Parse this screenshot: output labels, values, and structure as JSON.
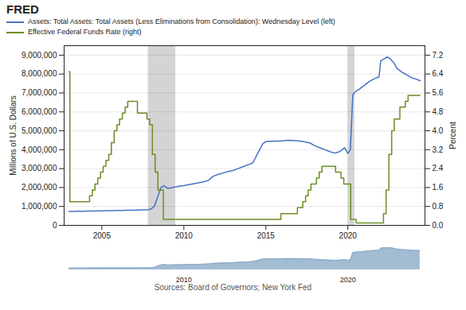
{
  "chart_data": [
    {
      "type": "line",
      "title": "FRED",
      "annotations": [
        "Sources: Board of Governors; New York Fed"
      ],
      "ylabel": "Millions of U.S. Dollars",
      "y2label": "Percent",
      "xlim": [
        2002.7,
        2024.7
      ],
      "xticks": [
        2005,
        2010,
        2015,
        2020
      ],
      "ylim": [
        0,
        9500000
      ],
      "yticks": [
        0,
        {
          "value": 1000000,
          "label": "1,000,000"
        },
        {
          "value": 2000000,
          "label": "2,000,000"
        },
        {
          "value": 3000000,
          "label": "3,000,000"
        },
        {
          "value": 4000000,
          "label": "4,000,000"
        },
        {
          "value": 5000000,
          "label": "5,000,000"
        },
        {
          "value": 6000000,
          "label": "6,000,000"
        },
        {
          "value": 7000000,
          "label": "7,000,000"
        },
        {
          "value": 8000000,
          "label": "8,000,000"
        },
        {
          "value": 9000000,
          "label": "9,000,000"
        }
      ],
      "y2lim": [
        0,
        7.6
      ],
      "y2ticks": [
        {
          "value": 0.0,
          "label": "0.0"
        },
        0.8,
        1.6,
        2.4,
        3.2,
        {
          "value": 4.0,
          "label": "4.0"
        },
        4.8,
        5.6,
        6.4,
        7.2
      ],
      "grid": true,
      "legend": "top left",
      "shades": [
        [
          2007.83,
          2009.5
        ],
        [
          2020.0,
          2020.42
        ]
      ],
      "series": [
        {
          "name": "Assets: Total Assets: Total Assets (Less Eliminations from Consolidation): Wednesday Level (left)",
          "color": "#4472c4",
          "x": [
            2003.0,
            2003.15,
            2003.3,
            2003.5,
            2003.7,
            2003.9,
            2004.1,
            2004.3,
            2004.5,
            2004.7,
            2004.9,
            2005.1,
            2005.3,
            2005.5,
            2005.7,
            2005.9,
            2006.1,
            2006.3,
            2006.5,
            2006.7,
            2006.9,
            2007.1,
            2007.3,
            2007.5,
            2007.7,
            2007.83,
            2008.0,
            2008.2,
            2008.4,
            2008.6,
            2008.8,
            2009.0,
            2009.2,
            2009.4,
            2009.6,
            2009.8,
            2010.0,
            2010.3,
            2010.6,
            2010.9,
            2011.2,
            2011.5,
            2011.8,
            2012.1,
            2012.4,
            2012.7,
            2013.0,
            2013.3,
            2013.6,
            2013.9,
            2014.2,
            2014.5,
            2014.8,
            2015.0,
            2015.3,
            2015.6,
            2015.9,
            2016.2,
            2016.5,
            2016.8,
            2017.1,
            2017.4,
            2017.7,
            2018.0,
            2018.3,
            2018.6,
            2018.9,
            2019.2,
            2019.5,
            2019.8,
            2020.0,
            2020.15,
            2020.3,
            2020.5,
            2020.7,
            2021.0,
            2021.3,
            2021.6,
            2021.9,
            2022.0,
            2022.2,
            2022.4,
            2022.6,
            2022.8,
            2023.0,
            2023.3,
            2023.6,
            2023.9,
            2024.1,
            2024.4
          ],
          "values": [
            735000,
            738000,
            740000,
            742000,
            745000,
            748000,
            752000,
            755000,
            758000,
            762000,
            765000,
            770000,
            774000,
            778000,
            782000,
            786000,
            790000,
            793000,
            796000,
            799000,
            802000,
            806000,
            810000,
            815000,
            822000,
            830000,
            870000,
            1000000,
            1500000,
            2000000,
            2100000,
            1950000,
            1980000,
            2020000,
            2050000,
            2080000,
            2100000,
            2150000,
            2200000,
            2250000,
            2300000,
            2380000,
            2600000,
            2700000,
            2770000,
            2850000,
            2900000,
            3000000,
            3100000,
            3200000,
            3300000,
            3800000,
            4300000,
            4430000,
            4450000,
            4460000,
            4460000,
            4490000,
            4500000,
            4480000,
            4460000,
            4410000,
            4350000,
            4200000,
            4100000,
            4000000,
            3900000,
            3820000,
            3900000,
            4100000,
            3800000,
            4000000,
            6900000,
            7100000,
            7200000,
            7400000,
            7600000,
            7750000,
            7850000,
            8700000,
            8800000,
            8900000,
            8800000,
            8600000,
            8300000,
            8100000,
            7950000,
            7800000,
            7750000,
            7650000
          ]
        },
        {
          "name": "Effective Federal Funds Rate (right)",
          "color": "#6b8e23",
          "axis": "y2",
          "line_style": "steps",
          "x": [
            2003.0,
            2003.05,
            2003.5,
            2003.58,
            2004.0,
            2004.25,
            2004.42,
            2004.58,
            2004.75,
            2004.92,
            2005.08,
            2005.25,
            2005.42,
            2005.58,
            2005.75,
            2005.92,
            2006.08,
            2006.25,
            2006.42,
            2006.58,
            2007.0,
            2007.17,
            2007.75,
            2007.92,
            2008.08,
            2008.25,
            2008.42,
            2008.75,
            2009.0,
            2015.0,
            2015.92,
            2016.92,
            2017.08,
            2017.25,
            2017.42,
            2017.58,
            2017.75,
            2018.0,
            2018.08,
            2018.25,
            2018.42,
            2018.75,
            2019.0,
            2019.25,
            2019.58,
            2019.75,
            2020.0,
            2020.17,
            2020.5,
            2022.0,
            2022.17,
            2022.33,
            2022.5,
            2022.67,
            2022.83,
            2023.0,
            2023.17,
            2023.5,
            2023.67,
            2024.0,
            2024.4
          ],
          "values": [
            6.5,
            1.0,
            1.0,
            1.0,
            1.0,
            1.25,
            1.5,
            1.75,
            2.0,
            2.25,
            2.5,
            2.75,
            3.0,
            3.5,
            4.0,
            4.25,
            4.5,
            4.75,
            5.0,
            5.25,
            5.25,
            4.75,
            4.5,
            4.25,
            3.0,
            2.25,
            1.5,
            0.25,
            0.25,
            0.25,
            0.5,
            0.75,
            0.75,
            1.0,
            1.25,
            1.5,
            1.75,
            1.75,
            2.0,
            2.25,
            2.5,
            2.5,
            2.5,
            2.25,
            2.0,
            1.75,
            1.75,
            0.25,
            0.1,
            0.1,
            0.5,
            1.5,
            3.0,
            4.0,
            4.5,
            4.5,
            5.0,
            5.25,
            5.5,
            5.5,
            5.5
          ]
        }
      ]
    },
    {
      "type": "area",
      "color": "#7a9fc0",
      "x": [
        2003.0,
        2003.15,
        2003.3,
        2003.5,
        2003.7,
        2003.9,
        2004.1,
        2004.3,
        2004.5,
        2004.7,
        2004.9,
        2005.1,
        2005.3,
        2005.5,
        2005.7,
        2005.9,
        2006.1,
        2006.3,
        2006.5,
        2006.7,
        2006.9,
        2007.1,
        2007.3,
        2007.5,
        2007.7,
        2007.83,
        2008.0,
        2008.2,
        2008.4,
        2008.6,
        2008.8,
        2009.0,
        2009.2,
        2009.4,
        2009.6,
        2009.8,
        2010.0,
        2010.3,
        2010.6,
        2010.9,
        2011.2,
        2011.5,
        2011.8,
        2012.1,
        2012.4,
        2012.7,
        2013.0,
        2013.3,
        2013.6,
        2013.9,
        2014.2,
        2014.5,
        2014.8,
        2015.0,
        2015.3,
        2015.6,
        2015.9,
        2016.2,
        2016.5,
        2016.8,
        2017.1,
        2017.4,
        2017.7,
        2018.0,
        2018.3,
        2018.6,
        2018.9,
        2019.2,
        2019.5,
        2019.8,
        2020.0,
        2020.15,
        2020.3,
        2020.5,
        2020.7,
        2021.0,
        2021.3,
        2021.6,
        2021.9,
        2022.0,
        2022.2,
        2022.4,
        2022.6,
        2022.8,
        2023.0,
        2023.3,
        2023.6,
        2023.9,
        2024.1,
        2024.4
      ],
      "values": [
        735000,
        738000,
        740000,
        742000,
        745000,
        748000,
        752000,
        755000,
        758000,
        762000,
        765000,
        770000,
        774000,
        778000,
        782000,
        786000,
        790000,
        793000,
        796000,
        799000,
        802000,
        806000,
        810000,
        815000,
        822000,
        830000,
        870000,
        1000000,
        1500000,
        2000000,
        2100000,
        1950000,
        1980000,
        2020000,
        2050000,
        2080000,
        2100000,
        2150000,
        2200000,
        2250000,
        2300000,
        2380000,
        2600000,
        2700000,
        2770000,
        2850000,
        2900000,
        3000000,
        3100000,
        3200000,
        3300000,
        3800000,
        4300000,
        4430000,
        4450000,
        4460000,
        4460000,
        4490000,
        4500000,
        4480000,
        4460000,
        4410000,
        4350000,
        4200000,
        4100000,
        4000000,
        3900000,
        3820000,
        3900000,
        4100000,
        3800000,
        4000000,
        6900000,
        7100000,
        7200000,
        7400000,
        7600000,
        7750000,
        7850000,
        8700000,
        8800000,
        8900000,
        8800000,
        8600000,
        8300000,
        8100000,
        7950000,
        7800000,
        7750000,
        7650000
      ],
      "xlim": [
        2002.7,
        2024.7
      ],
      "xticks": [
        2010,
        2020
      ],
      "ylim": [
        0,
        9500000
      ],
      "tick_labels": "x"
    }
  ]
}
